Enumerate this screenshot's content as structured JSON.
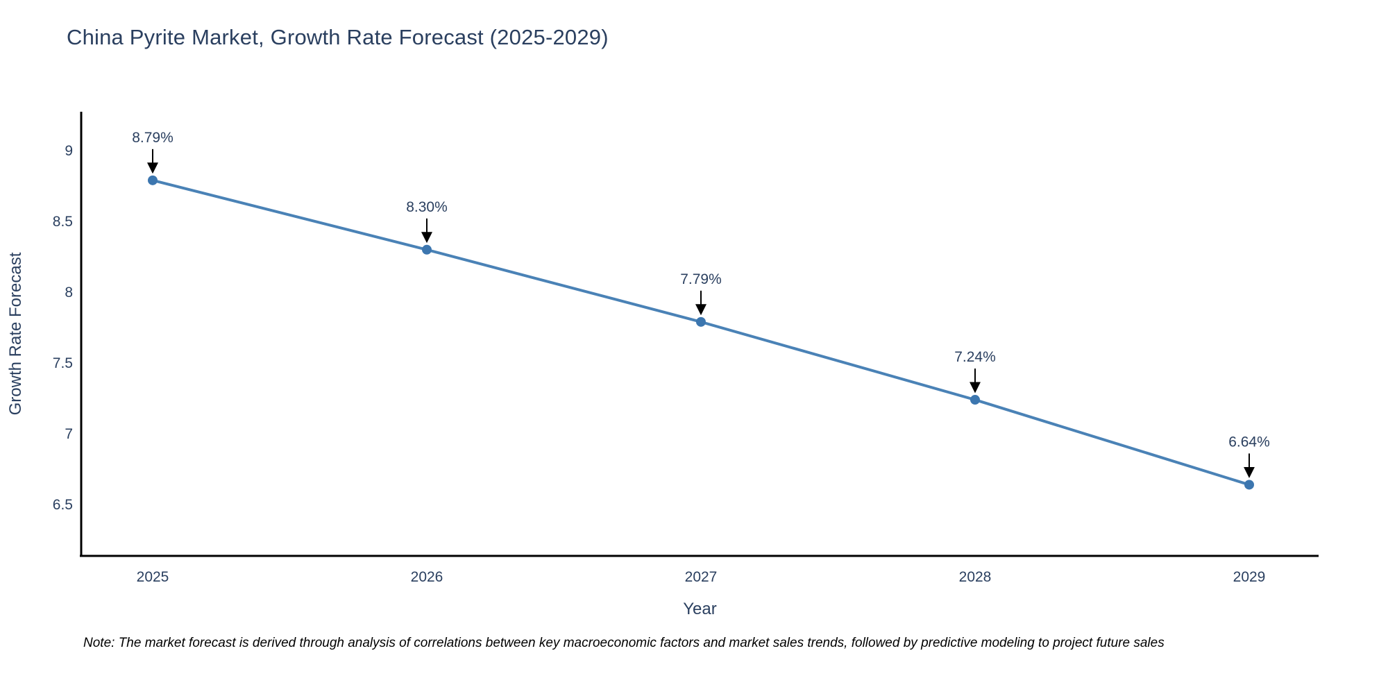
{
  "title": "China Pyrite Market, Growth Rate Forecast (2025-2029)",
  "note": "Note: The market forecast is derived through analysis of correlations between key macroeconomic factors and market sales trends, followed by predictive modeling to project future sales",
  "colors": {
    "line": "#4a82b6",
    "marker": "#3c76af",
    "text": "#2a3f5f",
    "axis": "#000000",
    "arrow": "#000000",
    "background": "#ffffff"
  },
  "chart_data": {
    "type": "line",
    "title": "China Pyrite Market, Growth Rate Forecast (2025-2029)",
    "x": [
      2025,
      2026,
      2027,
      2028,
      2029
    ],
    "y": [
      8.79,
      8.3,
      7.79,
      7.24,
      6.64
    ],
    "point_labels": [
      "8.79%",
      "8.30%",
      "7.79%",
      "7.24%",
      "6.64%"
    ],
    "xlabel": "Year",
    "ylabel": "Growth Rate Forecast",
    "x_tick_labels": [
      "2025",
      "2026",
      "2027",
      "2028",
      "2029"
    ],
    "y_tick_values": [
      9,
      8.5,
      8,
      7.5,
      7,
      6.5
    ],
    "xlim": [
      2024.74,
      2029.25
    ],
    "ylim": [
      6.14,
      9.27
    ],
    "grid": false,
    "legend": false,
    "annotation_style": "value label with downward black arrow above each marker",
    "marker_shape": "circle",
    "line_width": 4,
    "marker_radius": 7
  }
}
